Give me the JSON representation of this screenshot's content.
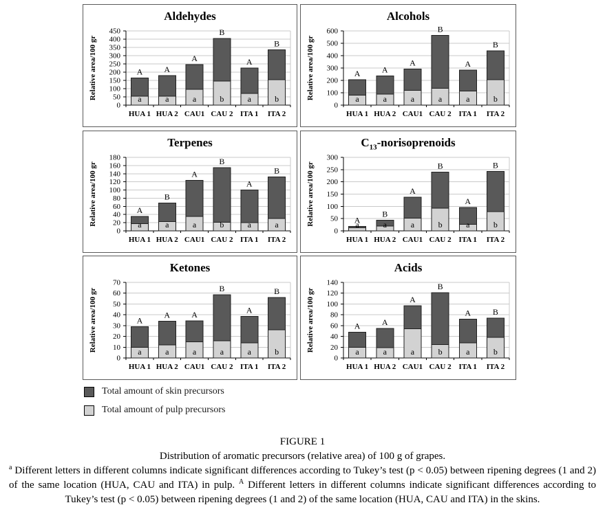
{
  "colors": {
    "skin": "#595959",
    "pulp": "#d2d2d2",
    "grid": "#c9c9c9",
    "axis": "#000000",
    "bar_stroke": "#1f1f1f"
  },
  "legend": {
    "items": [
      {
        "name": "skin",
        "label": "Total amount of skin precursors",
        "color": "#595959"
      },
      {
        "name": "pulp",
        "label": "Total amount of pulp precursors",
        "color": "#d2d2d2"
      }
    ]
  },
  "caption": {
    "figure_label": "FIGURE 1",
    "description": "Distribution of aromatic precursors (relative area) of 100 g of grapes.",
    "footnote_segments": [
      {
        "t": "a",
        "sup": true
      },
      {
        "t": " Different letters in different columns indicate significant differences according to Tukey’s test (p < 0.05) between ripening degrees (1 and 2) of the same location (HUA, CAU and ITA) in pulp.  ",
        "sup": false
      },
      {
        "t": "A",
        "sup": true
      },
      {
        "t": " Different letters in different columns indicate significant differences according to Tukey’s test (p < 0.05) between ripening degrees (1 and 2) of the same location (HUA, CAU and ITA) in the skins.",
        "sup": false
      }
    ]
  },
  "chart_data": [
    {
      "type": "bar",
      "stacked": true,
      "title": "Aldehydes",
      "title_parts": [
        {
          "t": "Aldehydes",
          "sub": false
        }
      ],
      "ylabel": "Relative area/100 gr",
      "ylim": [
        0,
        450
      ],
      "ystep": 50,
      "grid": true,
      "categories": [
        "HUA 1",
        "HUA 2",
        "CAU1",
        "CAU 2",
        "ITA 1",
        "ITA 2"
      ],
      "series": [
        {
          "name": "Total amount of pulp precursors",
          "values": [
            55,
            55,
            95,
            145,
            70,
            155
          ]
        },
        {
          "name": "Total amount of skin precursors",
          "values": [
            110,
            125,
            150,
            260,
            155,
            180
          ]
        }
      ],
      "totals": [
        165,
        180,
        245,
        405,
        225,
        335
      ],
      "skin_letters": [
        "A",
        "A",
        "A",
        "B",
        "A",
        "B"
      ],
      "pulp_letters": [
        "a",
        "a",
        "a",
        "b",
        "a",
        "b"
      ]
    },
    {
      "type": "bar",
      "stacked": true,
      "title": "Alcohols",
      "title_parts": [
        {
          "t": "Alcohols",
          "sub": false
        }
      ],
      "ylabel": "Relative area/100 gr",
      "ylim": [
        0,
        600
      ],
      "ystep": 100,
      "grid": true,
      "categories": [
        "HUA 1",
        "HUA 2",
        "CAU1",
        "CAU 2",
        "ITA 1",
        "ITA 2"
      ],
      "series": [
        {
          "name": "Total amount of pulp precursors",
          "values": [
            80,
            90,
            120,
            135,
            115,
            205
          ]
        },
        {
          "name": "Total amount of skin precursors",
          "values": [
            125,
            145,
            173,
            430,
            168,
            235
          ]
        }
      ],
      "totals": [
        205,
        235,
        293,
        565,
        283,
        440
      ],
      "skin_letters": [
        "A",
        "A",
        "A",
        "B",
        "A",
        "B"
      ],
      "pulp_letters": [
        "a",
        "a",
        "a",
        "a",
        "a",
        "b"
      ]
    },
    {
      "type": "bar",
      "stacked": true,
      "title": "Terpenes",
      "title_parts": [
        {
          "t": "Terpenes",
          "sub": false
        }
      ],
      "ylabel": "Relative area/100 gr",
      "ylim": [
        0,
        180
      ],
      "ystep": 20,
      "grid": true,
      "categories": [
        "HUA 1",
        "HUA 2",
        "CAU1",
        "CAU 2",
        "ITA 1",
        "ITA 2"
      ],
      "series": [
        {
          "name": "Total amount of pulp precursors",
          "values": [
            18,
            23,
            35,
            21,
            20,
            30
          ]
        },
        {
          "name": "Total amount of skin precursors",
          "values": [
            17,
            45,
            89,
            134,
            80,
            102
          ]
        }
      ],
      "totals": [
        35,
        68,
        124,
        155,
        100,
        132
      ],
      "skin_letters": [
        "A",
        "B",
        "A",
        "B",
        "A",
        "B"
      ],
      "pulp_letters": [
        "a",
        "a",
        "a",
        "b",
        "a",
        "a"
      ]
    },
    {
      "type": "bar",
      "stacked": true,
      "title": "C13-norisoprenoids",
      "title_parts": [
        {
          "t": "C",
          "sub": false
        },
        {
          "t": "13",
          "sub": true
        },
        {
          "t": "-norisoprenoids",
          "sub": false
        }
      ],
      "ylabel": "Relative area/100 gr",
      "ylim": [
        0,
        300
      ],
      "ystep": 50,
      "grid": true,
      "categories": [
        "HUA 1",
        "HUA 2",
        "CAU1",
        "CAU 2",
        "ITA 1",
        "ITA 2"
      ],
      "series": [
        {
          "name": "Total amount of pulp precursors",
          "values": [
            13,
            20,
            52,
            92,
            27,
            78
          ]
        },
        {
          "name": "Total amount of skin precursors",
          "values": [
            5,
            23,
            86,
            148,
            68,
            165
          ]
        }
      ],
      "totals": [
        18,
        43,
        138,
        240,
        95,
        243
      ],
      "skin_letters": [
        "A",
        "B",
        "A",
        "B",
        "A",
        "B"
      ],
      "pulp_letters": [
        "a",
        "a",
        "a",
        "b",
        "a",
        "b"
      ]
    },
    {
      "type": "bar",
      "stacked": true,
      "title": "Ketones",
      "title_parts": [
        {
          "t": "Ketones",
          "sub": false
        }
      ],
      "ylabel": "Relative area/100 gr",
      "ylim": [
        0,
        70
      ],
      "ystep": 10,
      "grid": true,
      "categories": [
        "HUA 1",
        "HUA 2",
        "CAU1",
        "CAU 2",
        "ITA 1",
        "ITA 2"
      ],
      "series": [
        {
          "name": "Total amount of pulp precursors",
          "values": [
            10,
            12,
            15,
            16,
            14,
            26
          ]
        },
        {
          "name": "Total amount of skin precursors",
          "values": [
            19,
            22,
            19.5,
            42.5,
            24.5,
            30
          ]
        }
      ],
      "totals": [
        29,
        34,
        34.5,
        58.5,
        38.5,
        56
      ],
      "skin_letters": [
        "A",
        "A",
        "A",
        "B",
        "A",
        "B"
      ],
      "pulp_letters": [
        "a",
        "a",
        "a",
        "a",
        "a",
        "b"
      ]
    },
    {
      "type": "bar",
      "stacked": true,
      "title": "Acids",
      "title_parts": [
        {
          "t": "Acids",
          "sub": false
        }
      ],
      "ylabel": "Relative area/100 gr",
      "ylim": [
        0,
        140
      ],
      "ystep": 20,
      "grid": true,
      "categories": [
        "HUA 1",
        "HUA 2",
        "CAU1",
        "CAU 2",
        "ITA 1",
        "ITA 2"
      ],
      "series": [
        {
          "name": "Total amount of pulp precursors",
          "values": [
            20,
            19,
            54,
            25,
            28,
            38
          ]
        },
        {
          "name": "Total amount of skin precursors",
          "values": [
            28,
            36,
            43,
            96,
            44,
            36
          ]
        }
      ],
      "totals": [
        48,
        55,
        97,
        121,
        72,
        74
      ],
      "skin_letters": [
        "A",
        "A",
        "A",
        "B",
        "A",
        "B"
      ],
      "pulp_letters": [
        "a",
        "a",
        "a",
        "b",
        "a",
        "b"
      ]
    }
  ]
}
